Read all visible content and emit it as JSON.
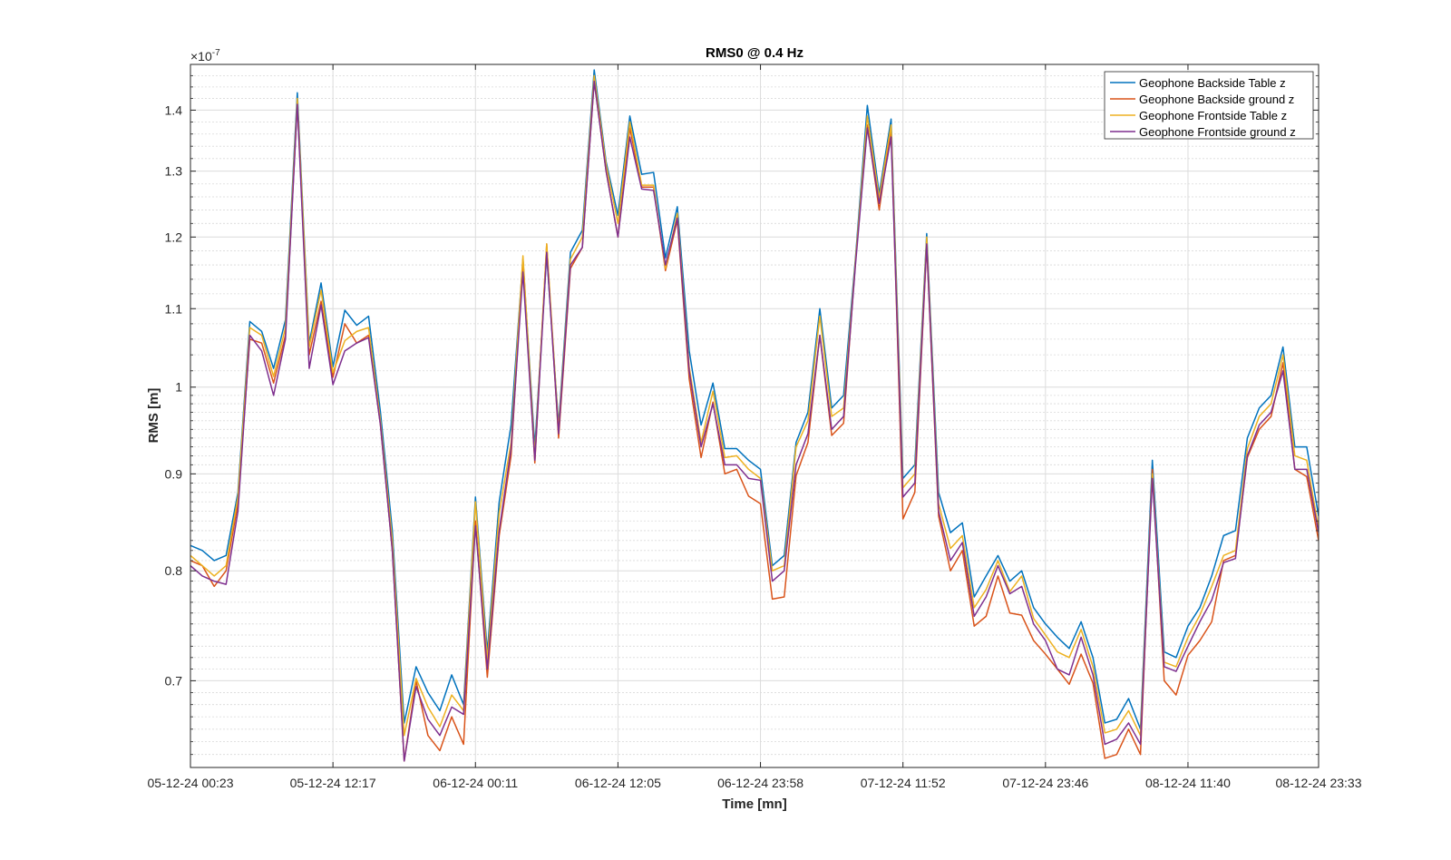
{
  "chart_data": {
    "type": "line",
    "title": "RMS0 @ 0.4 Hz",
    "xlabel": "Time [mn]",
    "ylabel": "RMS [m]",
    "y_scale": "log",
    "y_exponent_label": "×10",
    "y_exponent_power": "-7",
    "xlim": [
      0,
      95
    ],
    "ylim": [
      0.63,
      1.48
    ],
    "grid": true,
    "minor_grid": true,
    "legend_position": "top-right",
    "x_tick_values": [
      0,
      12,
      24,
      36,
      48,
      60,
      72,
      84,
      95
    ],
    "x_tick_labels": [
      "05-12-24 00:23",
      "05-12-24 12:17",
      "06-12-24 00:11",
      "06-12-24 12:05",
      "06-12-24 23:58",
      "07-12-24 11:52",
      "07-12-24 23:46",
      "08-12-24 11:40",
      "08-12-24 23:33"
    ],
    "y_tick_values": [
      0.7,
      0.8,
      0.9,
      1.0,
      1.1,
      1.2,
      1.3,
      1.4
    ],
    "y_tick_labels": [
      "0.7",
      "0.8",
      "0.9",
      "1",
      "1.1",
      "1.2",
      "1.3",
      "1.4"
    ],
    "y_minor_ticks": [
      0.64,
      0.65,
      0.66,
      0.67,
      0.68,
      0.69,
      0.71,
      0.72,
      0.73,
      0.74,
      0.75,
      0.76,
      0.77,
      0.78,
      0.79,
      0.81,
      0.82,
      0.83,
      0.84,
      0.85,
      0.86,
      0.87,
      0.88,
      0.89,
      0.91,
      0.92,
      0.93,
      0.94,
      0.95,
      0.96,
      0.97,
      0.98,
      0.99,
      1.02,
      1.04,
      1.06,
      1.08,
      1.12,
      1.14,
      1.16,
      1.18,
      1.22,
      1.24,
      1.26,
      1.28,
      1.32,
      1.34,
      1.36,
      1.38,
      1.42,
      1.44,
      1.46
    ],
    "series": [
      {
        "name": "Geophone Backside Table z",
        "color": "#0072BD",
        "values": [
          0.825,
          0.82,
          0.81,
          0.815,
          0.88,
          1.083,
          1.07,
          1.023,
          1.085,
          1.43,
          1.055,
          1.135,
          1.025,
          1.098,
          1.078,
          1.09,
          0.97,
          0.84,
          0.665,
          0.712,
          0.69,
          0.675,
          0.705,
          0.68,
          0.875,
          0.725,
          0.87,
          0.955,
          1.168,
          0.93,
          1.175,
          0.955,
          1.178,
          1.21,
          1.47,
          1.315,
          1.232,
          1.39,
          1.295,
          1.298,
          1.17,
          1.245,
          1.045,
          0.955,
          1.005,
          0.928,
          0.928,
          0.915,
          0.905,
          0.805,
          0.815,
          0.935,
          0.97,
          1.1,
          0.975,
          0.99,
          1.17,
          1.408,
          1.265,
          1.385,
          0.895,
          0.91,
          1.205,
          0.88,
          0.838,
          0.848,
          0.775,
          0.795,
          0.815,
          0.79,
          0.8,
          0.765,
          0.75,
          0.738,
          0.728,
          0.752,
          0.72,
          0.665,
          0.668,
          0.685,
          0.66,
          0.915,
          0.725,
          0.72,
          0.748,
          0.765,
          0.795,
          0.835,
          0.84,
          0.94,
          0.975,
          0.99,
          1.05,
          0.93,
          0.93,
          0.855
        ]
      },
      {
        "name": "Geophone Backside ground z",
        "color": "#D95319",
        "values": [
          0.81,
          0.805,
          0.785,
          0.8,
          0.868,
          1.06,
          1.055,
          1.005,
          1.065,
          1.41,
          1.04,
          1.11,
          1.012,
          1.08,
          1.055,
          1.065,
          0.955,
          0.82,
          0.635,
          0.7,
          0.655,
          0.643,
          0.67,
          0.648,
          0.85,
          0.703,
          0.835,
          0.92,
          1.168,
          0.912,
          1.19,
          0.94,
          1.155,
          1.185,
          1.45,
          1.3,
          1.2,
          1.37,
          1.275,
          1.275,
          1.152,
          1.225,
          1.01,
          0.918,
          0.982,
          0.9,
          0.905,
          0.876,
          0.868,
          0.773,
          0.775,
          0.898,
          0.935,
          1.065,
          0.943,
          0.957,
          1.165,
          1.375,
          1.24,
          1.37,
          0.852,
          0.88,
          1.188,
          0.855,
          0.8,
          0.82,
          0.748,
          0.757,
          0.795,
          0.76,
          0.758,
          0.735,
          0.723,
          0.71,
          0.697,
          0.723,
          0.698,
          0.637,
          0.64,
          0.66,
          0.64,
          0.905,
          0.7,
          0.688,
          0.722,
          0.735,
          0.752,
          0.81,
          0.815,
          0.918,
          0.95,
          0.965,
          1.03,
          0.905,
          0.897,
          0.83
        ]
      },
      {
        "name": "Geophone Frontside Table z",
        "color": "#EDB120",
        "values": [
          0.815,
          0.805,
          0.795,
          0.805,
          0.875,
          1.075,
          1.065,
          1.013,
          1.075,
          1.42,
          1.05,
          1.125,
          1.018,
          1.058,
          1.07,
          1.075,
          0.96,
          0.83,
          0.655,
          0.702,
          0.678,
          0.662,
          0.688,
          0.675,
          0.87,
          0.718,
          0.858,
          0.935,
          1.173,
          0.92,
          1.19,
          0.95,
          1.168,
          1.2,
          1.46,
          1.31,
          1.22,
          1.38,
          1.278,
          1.278,
          1.155,
          1.235,
          1.025,
          0.935,
          0.995,
          0.918,
          0.92,
          0.905,
          0.895,
          0.8,
          0.805,
          0.93,
          0.96,
          1.09,
          0.965,
          0.975,
          1.165,
          1.39,
          1.258,
          1.375,
          0.885,
          0.9,
          1.2,
          0.868,
          0.822,
          0.835,
          0.765,
          0.782,
          0.81,
          0.78,
          0.795,
          0.755,
          0.74,
          0.725,
          0.72,
          0.745,
          0.712,
          0.657,
          0.66,
          0.675,
          0.655,
          0.9,
          0.716,
          0.712,
          0.738,
          0.758,
          0.785,
          0.815,
          0.82,
          0.928,
          0.965,
          0.98,
          1.04,
          0.92,
          0.915,
          0.842
        ]
      },
      {
        "name": "Geophone Frontside ground z",
        "color": "#7E2F8E",
        "values": [
          0.805,
          0.795,
          0.79,
          0.787,
          0.86,
          1.065,
          1.045,
          0.99,
          1.06,
          1.41,
          1.023,
          1.105,
          1.003,
          1.045,
          1.055,
          1.062,
          0.955,
          0.82,
          0.635,
          0.695,
          0.668,
          0.655,
          0.678,
          0.672,
          0.845,
          0.71,
          0.84,
          0.928,
          1.15,
          0.915,
          1.178,
          0.945,
          1.16,
          1.185,
          1.45,
          1.3,
          1.2,
          1.355,
          1.272,
          1.27,
          1.16,
          1.228,
          1.02,
          0.93,
          0.98,
          0.91,
          0.91,
          0.895,
          0.893,
          0.79,
          0.8,
          0.91,
          0.945,
          1.065,
          0.95,
          0.965,
          1.16,
          1.37,
          1.25,
          1.355,
          0.875,
          0.89,
          1.19,
          0.86,
          0.81,
          0.828,
          0.757,
          0.775,
          0.805,
          0.778,
          0.785,
          0.75,
          0.735,
          0.71,
          0.705,
          0.738,
          0.705,
          0.648,
          0.652,
          0.665,
          0.648,
          0.895,
          0.712,
          0.708,
          0.73,
          0.752,
          0.772,
          0.808,
          0.812,
          0.92,
          0.955,
          0.97,
          1.02,
          0.905,
          0.905,
          0.838
        ]
      }
    ]
  }
}
